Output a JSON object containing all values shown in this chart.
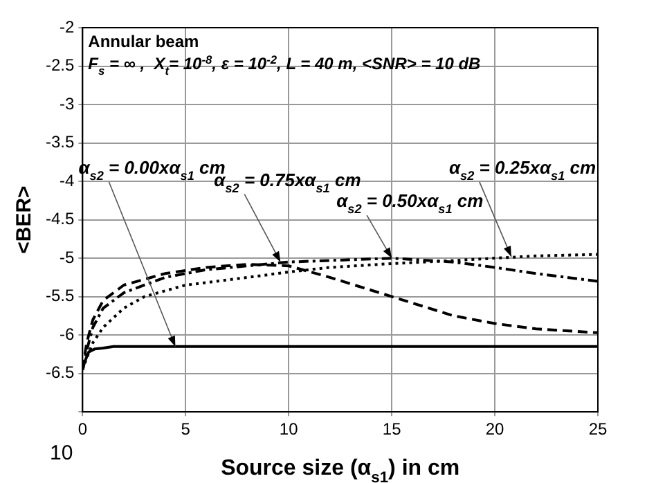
{
  "chart_data": {
    "type": "line",
    "title": "Annular beam",
    "subtitle": "F$_{s}$ = ∞ ,  X$_{t}$= 10$^{-8}$, ε = 10$^{-2}$, L = 40 m, <SNR> = 10 dB",
    "xlabel": "Source size (α$_{s1}$) in cm",
    "ylabel": "<BER>",
    "xlim": [
      0,
      25
    ],
    "xticks": [
      0,
      5,
      10,
      15,
      20,
      25
    ],
    "ylim": [
      -7,
      -2
    ],
    "yticks": [
      {
        "value": -7,
        "label": null
      },
      -6.5,
      -6,
      -5.5,
      -5,
      -4.5,
      -4,
      -3.5,
      -3,
      -2.5,
      -2
    ],
    "grid": true,
    "legend": false,
    "marker": "none",
    "series": [
      {
        "color": "#000000",
        "line_style": "solid",
        "x": [
          0,
          0.1,
          0.3,
          0.6,
          1,
          1.5,
          5,
          10,
          15,
          20,
          25
        ],
        "values": [
          -6.45,
          -6.35,
          -6.22,
          -6.18,
          -6.17,
          -6.15,
          -6.15,
          -6.15,
          -6.15,
          -6.15,
          -6.15
        ]
      },
      {
        "color": "#000000",
        "line_style": "dashed",
        "x": [
          0,
          0.2,
          0.5,
          1,
          2,
          4,
          6,
          8,
          10,
          12,
          15,
          18,
          20,
          22,
          25
        ],
        "values": [
          -6.45,
          -6.1,
          -5.8,
          -5.55,
          -5.35,
          -5.2,
          -5.12,
          -5.08,
          -5.1,
          -5.25,
          -5.5,
          -5.75,
          -5.85,
          -5.92,
          -5.97
        ]
      },
      {
        "color": "#000000",
        "line_style": "dashdot",
        "x": [
          0,
          0.2,
          0.5,
          1,
          2,
          4,
          6,
          8,
          10,
          12,
          15,
          18,
          20,
          22,
          25
        ],
        "values": [
          -6.45,
          -6.2,
          -5.9,
          -5.65,
          -5.45,
          -5.25,
          -5.15,
          -5.1,
          -5.05,
          -5.03,
          -5.0,
          -5.05,
          -5.12,
          -5.2,
          -5.3
        ]
      },
      {
        "color": "#000000",
        "line_style": "dotted",
        "x": [
          0,
          0.2,
          0.5,
          1,
          2,
          3,
          5,
          8,
          10,
          12,
          15,
          18,
          20,
          22,
          25
        ],
        "values": [
          -6.45,
          -6.3,
          -6.1,
          -5.9,
          -5.65,
          -5.5,
          -5.35,
          -5.25,
          -5.18,
          -5.12,
          -5.07,
          -5.03,
          -5.0,
          -4.97,
          -4.95
        ]
      }
    ],
    "annotations": [
      {
        "text": "α$_{s2}$ = 0.00xα$_{s1}$ cm",
        "x": 4.5,
        "y": -6.15
      },
      {
        "text": "α$_{s2}$ = 0.75xα$_{s1}$ cm",
        "x": 9.6,
        "y": -5.05
      },
      {
        "text": "α$_{s2}$ = 0.50xα$_{s1}$ cm",
        "x": 15,
        "y": -5.0
      },
      {
        "text": "α$_{s2}$ = 0.25xα$_{s1}$ cm",
        "x": 20.8,
        "y": -4.98
      },
      "10"
    ]
  }
}
